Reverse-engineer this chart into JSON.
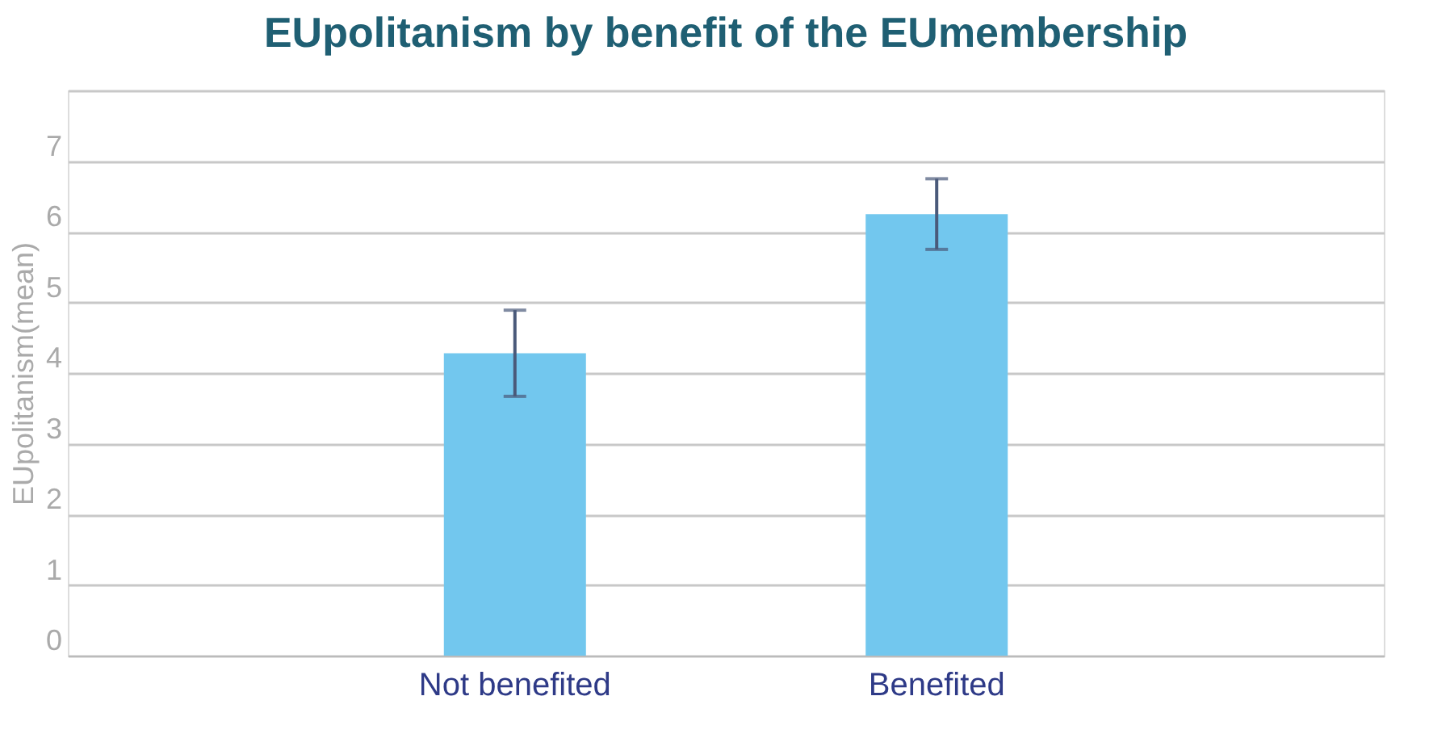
{
  "chart_data": {
    "type": "bar",
    "title": "EUpolitanism by benefit of the EUmembership",
    "ylabel": "EUpolitanism(mean)",
    "categories": [
      "Not benefited",
      "Benefited"
    ],
    "values": [
      4.28,
      6.25
    ],
    "errors": [
      0.61,
      0.5
    ],
    "color": "#72c7ee",
    "ylim": [
      0,
      8
    ],
    "yticks": [
      0,
      1,
      2,
      3,
      4,
      5,
      6,
      7,
      {
        "value": 8,
        "label": null
      }
    ],
    "grid": "y"
  }
}
